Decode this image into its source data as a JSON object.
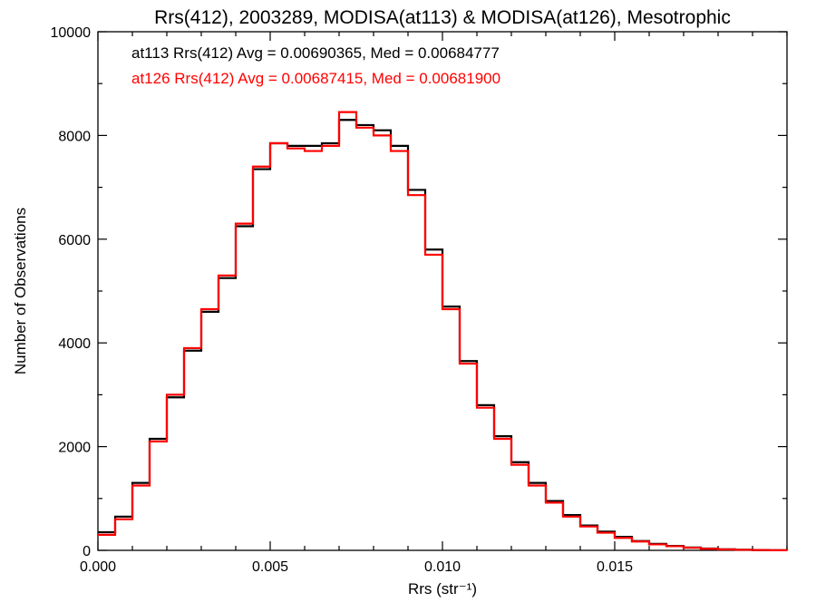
{
  "chart_data": {
    "type": "line",
    "title": "Rrs(412), 2003289, MODISA(at113) & MODISA(at126), Mesotrophic",
    "xlabel": "Rrs (str⁻¹)",
    "ylabel": "Number of Observations",
    "xlim": [
      0.0,
      0.02
    ],
    "ylim": [
      0,
      10000
    ],
    "x_ticks": [
      {
        "value": 0.0,
        "label": "0.000"
      },
      {
        "value": 0.005,
        "label": "0.005"
      },
      {
        "value": 0.01,
        "label": "0.010"
      },
      {
        "value": 0.015,
        "label": "0.015"
      }
    ],
    "y_ticks": [
      {
        "value": 0,
        "label": "0"
      },
      {
        "value": 2000,
        "label": "2000"
      },
      {
        "value": 4000,
        "label": "4000"
      },
      {
        "value": 6000,
        "label": "6000"
      },
      {
        "value": 8000,
        "label": "8000"
      },
      {
        "value": 10000,
        "label": "10000"
      }
    ],
    "grid": false,
    "step": true,
    "x": [
      0.0,
      0.0005,
      0.001,
      0.0015,
      0.002,
      0.0025,
      0.003,
      0.0035,
      0.004,
      0.0045,
      0.005,
      0.0055,
      0.006,
      0.0065,
      0.007,
      0.0075,
      0.008,
      0.0085,
      0.009,
      0.0095,
      0.01,
      0.0105,
      0.011,
      0.0115,
      0.012,
      0.0125,
      0.013,
      0.0135,
      0.014,
      0.0145,
      0.015,
      0.0155,
      0.016,
      0.0165,
      0.017,
      0.0175,
      0.018,
      0.0185,
      0.019,
      0.0195,
      0.02
    ],
    "series": [
      {
        "name": "at113",
        "color": "#000000",
        "values": [
          350,
          650,
          1300,
          2150,
          2950,
          3850,
          4600,
          5250,
          6250,
          7350,
          7850,
          7800,
          7800,
          7850,
          8300,
          8200,
          8100,
          7800,
          6950,
          5800,
          4700,
          3650,
          2800,
          2200,
          1700,
          1300,
          950,
          680,
          480,
          360,
          260,
          180,
          125,
          85,
          55,
          35,
          20,
          12,
          6,
          3,
          0
        ]
      },
      {
        "name": "at126",
        "color": "#ff0000",
        "values": [
          300,
          600,
          1250,
          2100,
          3000,
          3900,
          4650,
          5300,
          6300,
          7400,
          7850,
          7750,
          7700,
          7800,
          8450,
          8150,
          8000,
          7700,
          6850,
          5700,
          4650,
          3600,
          2750,
          2150,
          1650,
          1250,
          920,
          650,
          460,
          340,
          240,
          170,
          115,
          80,
          50,
          30,
          18,
          10,
          5,
          2,
          0
        ]
      }
    ],
    "annotations": [
      {
        "text": "at113 Rrs(412) Avg = 0.00690365, Med = 0.00684777",
        "color": "#000000"
      },
      {
        "text": "at126 Rrs(412) Avg = 0.00687415, Med = 0.00681900",
        "color": "#ff0000"
      }
    ]
  }
}
